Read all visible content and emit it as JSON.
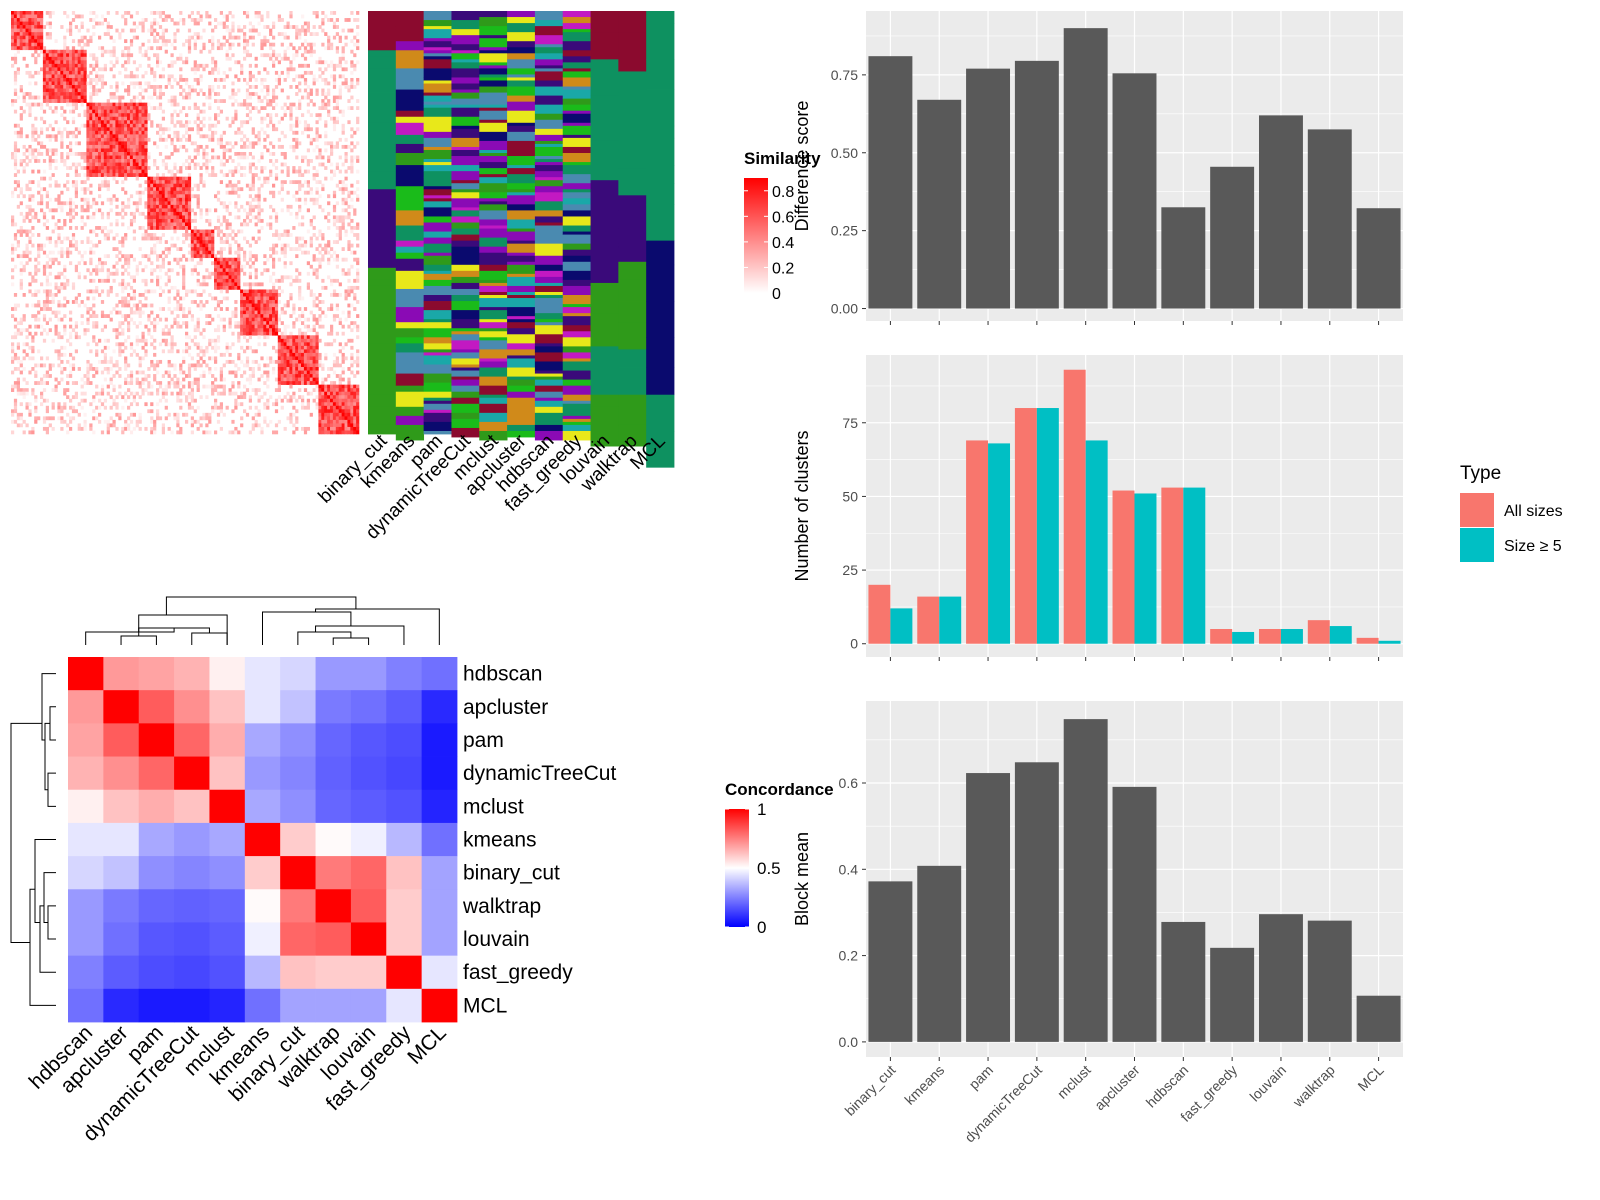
{
  "colors": {
    "panel_bg": "#ebebeb",
    "gridline": "#ffffff",
    "bar_fill": "#595959",
    "all_sizes": "#f8766d",
    "size_ge5": "#00bfc4",
    "sim_high": "#ff0000",
    "sim_low": "#ffffff",
    "conc_high": "#ff0000",
    "conc_mid": "#ffffff",
    "conc_low": "#0000ff"
  },
  "chart_data": [
    {
      "id": "similarity_heatmap",
      "type": "heatmap",
      "title": "",
      "description_blocks": [
        0.0,
        0.09,
        0.22,
        0.39,
        0.52,
        0.58,
        0.66,
        0.77,
        0.88,
        1.0
      ],
      "legend": {
        "title": "Similarity",
        "ticks": [
          "0.8",
          "0.6",
          "0.4",
          "0.2",
          "0"
        ],
        "tick_values": [
          0.8,
          0.6,
          0.4,
          0.2,
          0
        ]
      }
    },
    {
      "id": "cluster_assignment_heatmap",
      "type": "heatmap",
      "columns": [
        "binary_cut",
        "kmeans",
        "pam",
        "dynamicTreeCut",
        "mclust",
        "apcluster",
        "hdbscan",
        "fast_greedy",
        "louvain",
        "walktrap",
        "MCL"
      ],
      "palette": [
        "#8b0a2e",
        "#0e9160",
        "#3a0a7a",
        "#2f9a1a",
        "#c219c2",
        "#0a0a6e",
        "#d08a1a",
        "#1aa8a8",
        "#e8e81a",
        "#4a8ab0",
        "#8a0ab5",
        "#1abb1a"
      ]
    },
    {
      "id": "concordance_heatmap",
      "type": "heatmap",
      "rows": [
        "hdbscan",
        "apcluster",
        "pam",
        "dynamicTreeCut",
        "mclust",
        "kmeans",
        "binary_cut",
        "walktrap",
        "louvain",
        "fast_greedy",
        "MCL"
      ],
      "columns": [
        "hdbscan",
        "apcluster",
        "pam",
        "dynamicTreeCut",
        "mclust",
        "kmeans",
        "binary_cut",
        "walktrap",
        "louvain",
        "fast_greedy",
        "MCL"
      ],
      "values": [
        [
          1.0,
          0.7,
          0.68,
          0.65,
          0.53,
          0.45,
          0.42,
          0.3,
          0.3,
          0.25,
          0.22
        ],
        [
          0.7,
          1.0,
          0.82,
          0.72,
          0.62,
          0.45,
          0.38,
          0.24,
          0.22,
          0.18,
          0.08
        ],
        [
          0.68,
          0.82,
          1.0,
          0.8,
          0.66,
          0.33,
          0.28,
          0.2,
          0.17,
          0.15,
          0.05
        ],
        [
          0.65,
          0.72,
          0.8,
          1.0,
          0.62,
          0.3,
          0.26,
          0.19,
          0.16,
          0.14,
          0.05
        ],
        [
          0.53,
          0.62,
          0.66,
          0.62,
          1.0,
          0.33,
          0.28,
          0.2,
          0.18,
          0.16,
          0.07
        ],
        [
          0.45,
          0.45,
          0.33,
          0.3,
          0.33,
          1.0,
          0.6,
          0.51,
          0.47,
          0.36,
          0.22
        ],
        [
          0.42,
          0.38,
          0.28,
          0.26,
          0.28,
          0.6,
          1.0,
          0.76,
          0.8,
          0.62,
          0.32
        ],
        [
          0.3,
          0.24,
          0.2,
          0.19,
          0.2,
          0.51,
          0.76,
          1.0,
          0.82,
          0.6,
          0.32
        ],
        [
          0.3,
          0.22,
          0.17,
          0.16,
          0.18,
          0.47,
          0.8,
          0.82,
          1.0,
          0.6,
          0.32
        ],
        [
          0.25,
          0.18,
          0.15,
          0.14,
          0.16,
          0.36,
          0.62,
          0.6,
          0.6,
          1.0,
          0.45
        ],
        [
          0.22,
          0.08,
          0.05,
          0.05,
          0.07,
          0.22,
          0.32,
          0.32,
          0.32,
          0.45,
          1.0
        ]
      ],
      "legend": {
        "title": "Concordance",
        "ticks": [
          "1",
          "0.5",
          "0"
        ],
        "tick_values": [
          1,
          0.5,
          0
        ]
      }
    },
    {
      "id": "difference_score",
      "type": "bar",
      "categories": [
        "binary_cut",
        "kmeans",
        "pam",
        "dynamicTreeCut",
        "mclust",
        "apcluster",
        "hdbscan",
        "fast_greedy",
        "louvain",
        "walktrap",
        "MCL"
      ],
      "values": [
        0.81,
        0.67,
        0.77,
        0.795,
        0.9,
        0.755,
        0.325,
        0.455,
        0.62,
        0.575,
        0.322
      ],
      "ylabel": "Difference score",
      "ylim": [
        -0.04,
        0.955
      ],
      "yticks": [
        "0.00",
        "0.25",
        "0.50",
        "0.75"
      ],
      "ytick_values": [
        0,
        0.25,
        0.5,
        0.75
      ]
    },
    {
      "id": "number_of_clusters",
      "type": "bar",
      "categories": [
        "binary_cut",
        "kmeans",
        "pam",
        "dynamicTreeCut",
        "mclust",
        "apcluster",
        "hdbscan",
        "fast_greedy",
        "louvain",
        "walktrap",
        "MCL"
      ],
      "series": [
        {
          "name": "All sizes",
          "values": [
            20,
            16,
            69,
            80,
            93,
            52,
            53,
            5,
            5,
            8,
            2
          ]
        },
        {
          "name": "Size ≥ 5",
          "values": [
            12,
            16,
            68,
            80,
            69,
            51,
            53,
            4,
            5,
            6,
            1
          ]
        }
      ],
      "ylabel": "Number of clusters",
      "ylim": [
        -4.5,
        98
      ],
      "yticks": [
        "0",
        "25",
        "50",
        "75"
      ],
      "ytick_values": [
        0,
        25,
        50,
        75
      ],
      "legend": {
        "title": "Type",
        "position": "right"
      }
    },
    {
      "id": "block_mean",
      "type": "bar",
      "categories": [
        "binary_cut",
        "kmeans",
        "pam",
        "dynamicTreeCut",
        "mclust",
        "apcluster",
        "hdbscan",
        "fast_greedy",
        "louvain",
        "walktrap",
        "MCL"
      ],
      "values": [
        0.372,
        0.408,
        0.623,
        0.648,
        0.748,
        0.591,
        0.278,
        0.218,
        0.296,
        0.281,
        0.107
      ],
      "ylabel": "Block mean",
      "ylim": [
        -0.035,
        0.79
      ],
      "yticks": [
        "0.0",
        "0.2",
        "0.4",
        "0.6"
      ],
      "ytick_values": [
        0,
        0.2,
        0.4,
        0.6
      ]
    }
  ]
}
